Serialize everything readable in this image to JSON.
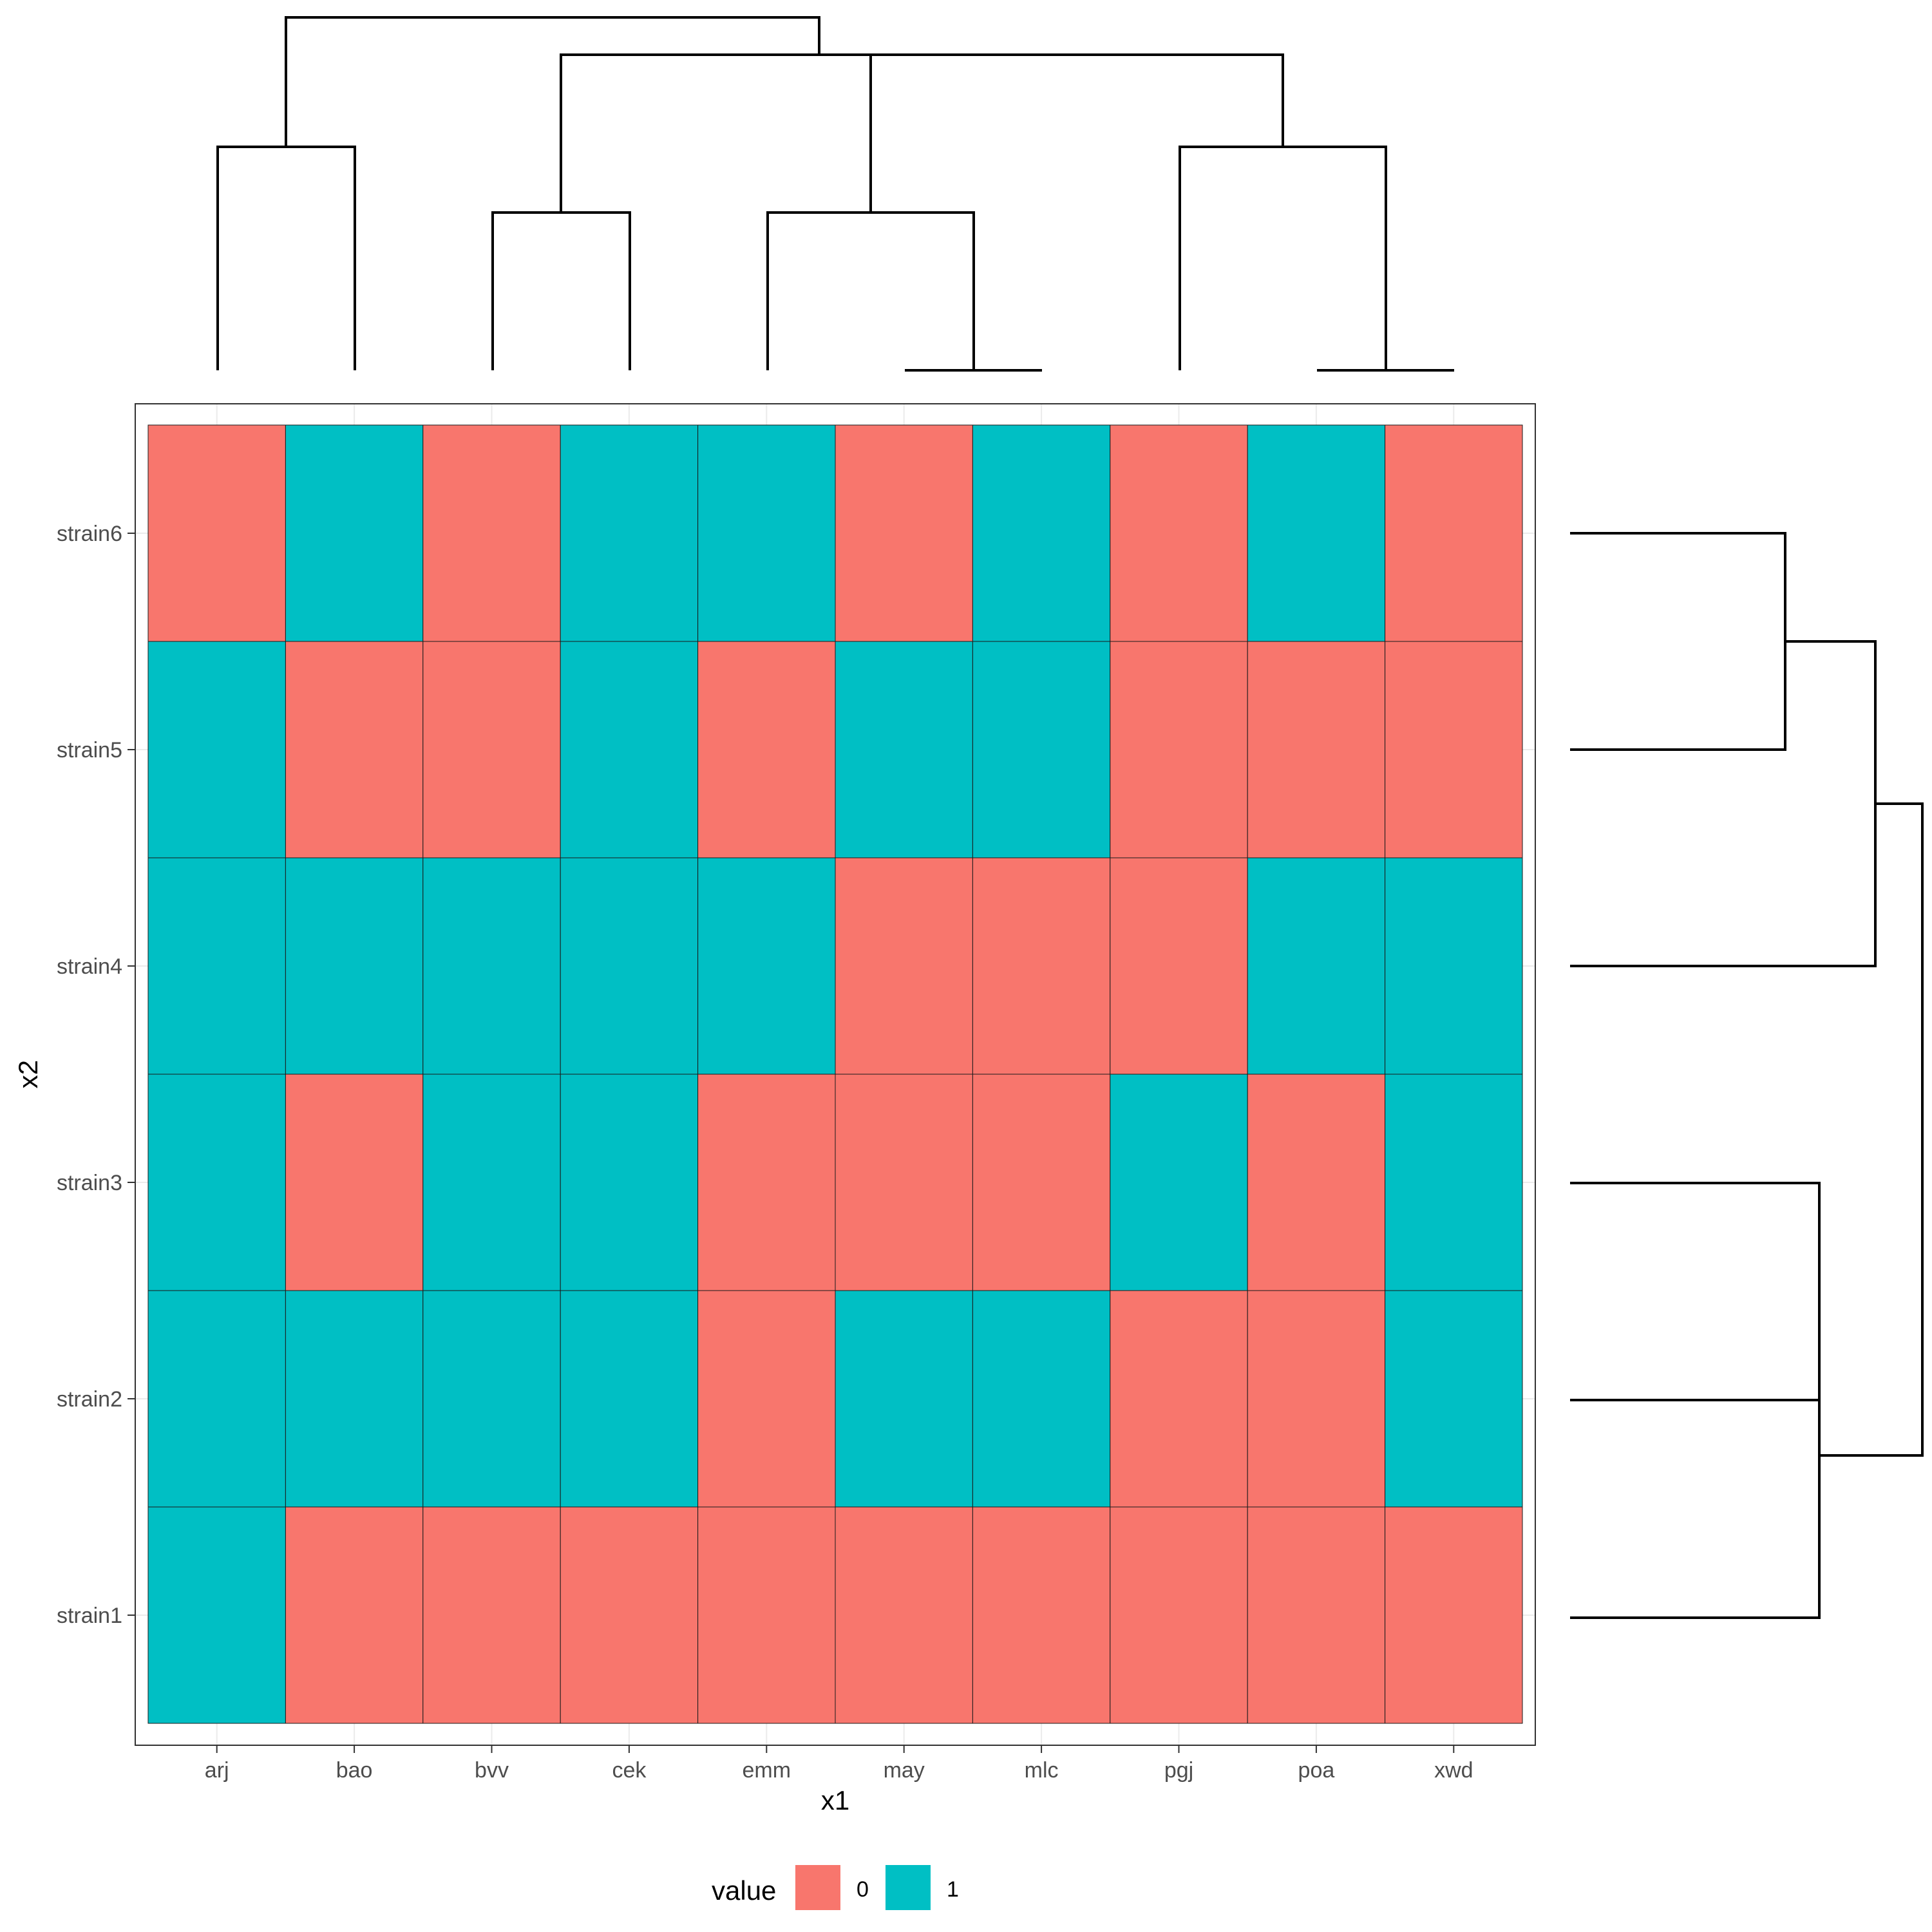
{
  "chart_data": {
    "type": "heatmap",
    "x_categories": [
      "arj",
      "bao",
      "bvv",
      "cek",
      "emm",
      "may",
      "mlc",
      "pgj",
      "poa",
      "xwd"
    ],
    "y_categories": [
      "strain1",
      "strain2",
      "strain3",
      "strain4",
      "strain5",
      "strain6"
    ],
    "values": [
      [
        1,
        0,
        0,
        0,
        0,
        0,
        0,
        0,
        0,
        0
      ],
      [
        1,
        1,
        1,
        1,
        0,
        1,
        1,
        0,
        0,
        1
      ],
      [
        1,
        0,
        1,
        1,
        0,
        0,
        0,
        1,
        0,
        1
      ],
      [
        1,
        1,
        1,
        1,
        1,
        0,
        0,
        0,
        1,
        1
      ],
      [
        1,
        0,
        0,
        1,
        0,
        1,
        1,
        0,
        0,
        0
      ],
      [
        0,
        1,
        0,
        1,
        1,
        0,
        1,
        0,
        1,
        0
      ]
    ],
    "xlabel": "x1",
    "ylabel": "x2",
    "grid": true,
    "legend": {
      "title": "value",
      "position": "bottom",
      "entries": [
        {
          "label": "0",
          "color": "#F8766D"
        },
        {
          "label": "1",
          "color": "#00BFC4"
        }
      ]
    },
    "colors": {
      "0": "#F8766D",
      "1": "#00BFC4"
    },
    "dendrogram_columns": "top",
    "dendrogram_rows": "right"
  }
}
